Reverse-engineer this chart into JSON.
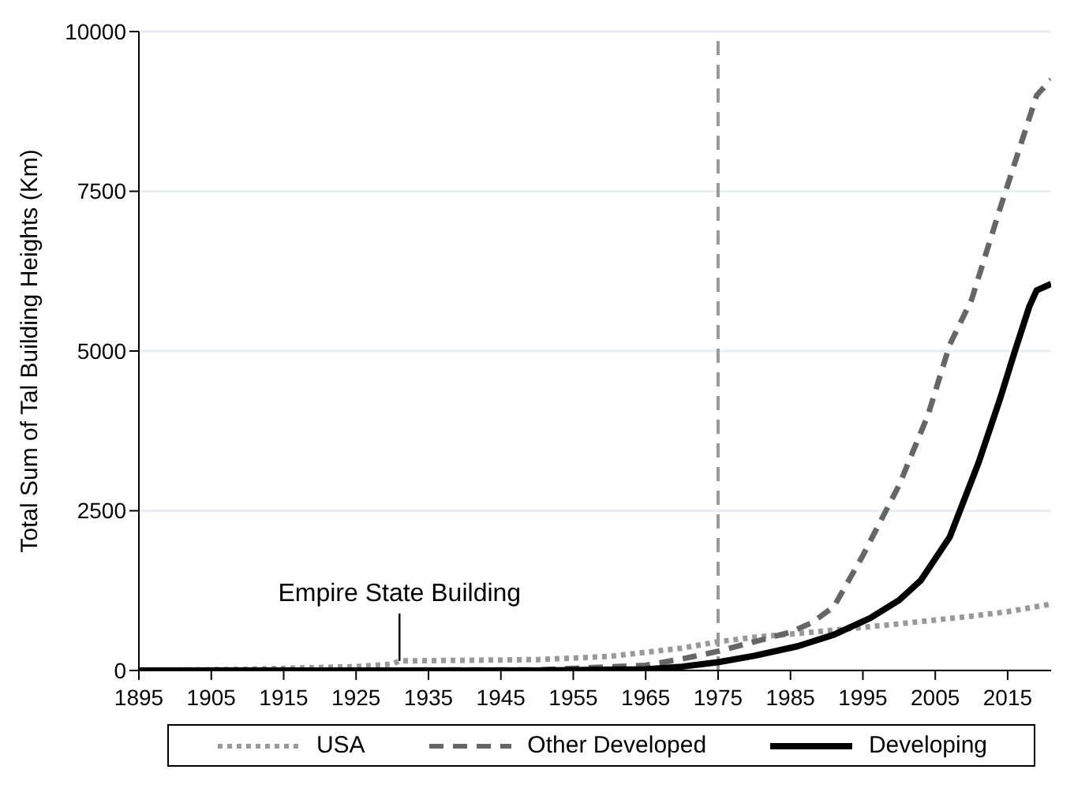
{
  "chart_data": {
    "type": "line",
    "ylabel": "Total Sum of Tal Building Heights (Km)",
    "xlim": [
      1895,
      2021
    ],
    "xticks": [
      1895,
      1905,
      1915,
      1925,
      1935,
      1945,
      1955,
      1965,
      1975,
      1985,
      1995,
      2005,
      2015
    ],
    "ylim": [
      0,
      10000
    ],
    "yticks": [
      0,
      2500,
      5000,
      7500,
      10000
    ],
    "grid": "y",
    "legend": "bottom",
    "series": [
      {
        "name": "USA",
        "color": "#999999",
        "line_style": "dotted",
        "x": [
          1895,
          1910,
          1925,
          1930,
          1931,
          1950,
          1960,
          1970,
          1975,
          1980,
          1990,
          2000,
          2010,
          2015,
          2021
        ],
        "values": [
          0,
          20,
          60,
          100,
          150,
          170,
          220,
          350,
          450,
          520,
          620,
          730,
          850,
          920,
          1040
        ]
      },
      {
        "name": "Other Developed",
        "color": "#666666",
        "line_style": "dashed",
        "x": [
          1895,
          1950,
          1965,
          1970,
          1975,
          1980,
          1985,
          1988,
          1991,
          1995,
          2000,
          2004,
          2007,
          2010,
          2014,
          2017,
          2019,
          2021
        ],
        "values": [
          0,
          10,
          80,
          180,
          300,
          450,
          600,
          750,
          1000,
          1800,
          2900,
          4000,
          5100,
          5800,
          7250,
          8300,
          9000,
          9250
        ]
      },
      {
        "name": "Developing",
        "color": "#000000",
        "line_style": "solid",
        "x": [
          1895,
          1950,
          1965,
          1970,
          1975,
          1980,
          1986,
          1991,
          1996,
          2000,
          2003,
          2007,
          2011,
          2014,
          2016,
          2018,
          2019,
          2021
        ],
        "values": [
          0,
          0,
          20,
          60,
          130,
          230,
          380,
          560,
          820,
          1100,
          1410,
          2090,
          3260,
          4270,
          5000,
          5700,
          5950,
          6050
        ]
      }
    ],
    "ref_lines": [
      {
        "axis": "x",
        "value": 1975,
        "color": "#999999",
        "line_style": "dashed"
      }
    ],
    "annotations": [
      {
        "text": "Empire State Building",
        "x": 1931,
        "y": 150
      }
    ]
  }
}
